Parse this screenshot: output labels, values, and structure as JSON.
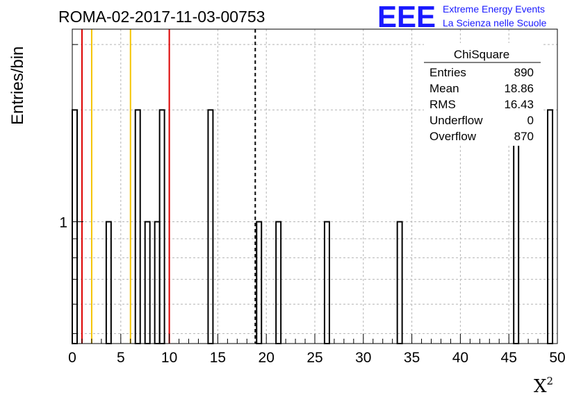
{
  "header": {
    "run_title": "ROMA-02-2017-11-03-00753",
    "logo_text": "EEE",
    "logo_line1": "Extreme Energy Events",
    "logo_line2": "La Scienza nelle Scuole",
    "logo_color": "#1a1aff"
  },
  "stats_box": {
    "title": "ChiSquare",
    "rows": [
      {
        "label": "Entries",
        "value": "890"
      },
      {
        "label": "Mean",
        "value": "18.86"
      },
      {
        "label": "RMS",
        "value": "16.43"
      },
      {
        "label": "Underflow",
        "value": "0"
      },
      {
        "label": "Overflow",
        "value": "870"
      }
    ]
  },
  "chart_data": {
    "type": "bar",
    "title": "ROMA-02-2017-11-03-00753",
    "xlabel": "X",
    "xlabel_superscript": "2",
    "ylabel": "Entries/bin",
    "xlim": [
      0,
      50
    ],
    "y_scale": "log",
    "ylim": [
      0.47,
      3.3
    ],
    "grid": true,
    "bin_width": 0.5,
    "x_ticks": [
      "0",
      "5",
      "10",
      "15",
      "20",
      "25",
      "30",
      "35",
      "40",
      "45",
      "50"
    ],
    "y_tick_labels": [
      "1"
    ],
    "bins": [
      {
        "x": 0.0,
        "value": 2
      },
      {
        "x": 3.5,
        "value": 1
      },
      {
        "x": 6.5,
        "value": 2
      },
      {
        "x": 7.5,
        "value": 1
      },
      {
        "x": 8.5,
        "value": 1
      },
      {
        "x": 9.0,
        "value": 2
      },
      {
        "x": 14.0,
        "value": 2
      },
      {
        "x": 19.0,
        "value": 1
      },
      {
        "x": 21.0,
        "value": 1
      },
      {
        "x": 26.0,
        "value": 1
      },
      {
        "x": 33.5,
        "value": 1
      },
      {
        "x": 45.5,
        "value": 2
      },
      {
        "x": 49.0,
        "value": 2
      }
    ],
    "vertical_lines": [
      {
        "x": 1,
        "color": "#dd0000",
        "style": "solid"
      },
      {
        "x": 2,
        "color": "#f5c400",
        "style": "solid"
      },
      {
        "x": 6,
        "color": "#f5c400",
        "style": "solid"
      },
      {
        "x": 10,
        "color": "#dd0000",
        "style": "solid"
      },
      {
        "x": 18.86,
        "color": "#000000",
        "style": "dashed"
      }
    ]
  }
}
